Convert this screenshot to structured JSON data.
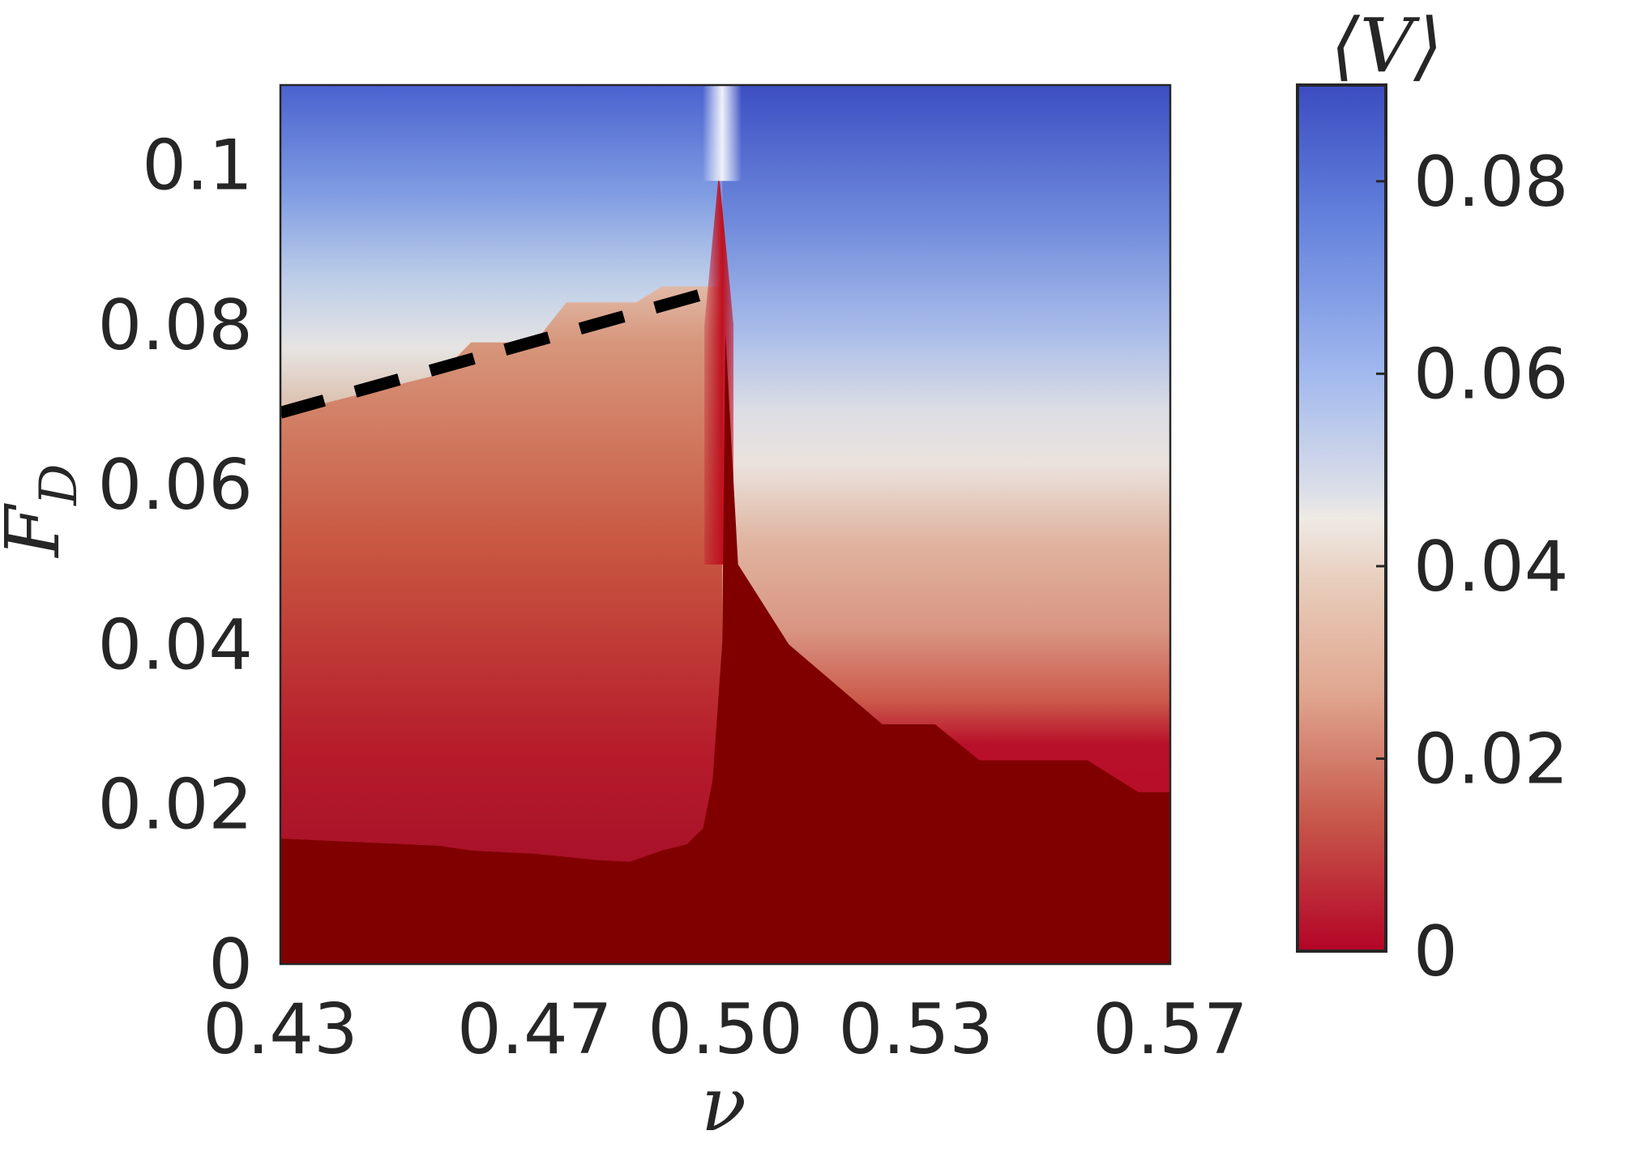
{
  "chart_data": {
    "type": "heatmap",
    "title": "",
    "xlabel": "ν",
    "ylabel": "F_D",
    "xlim": [
      0.43,
      0.57
    ],
    "ylim": [
      0,
      0.11
    ],
    "x_tick_labels": [
      "0.43",
      "0.47",
      "0.50",
      "0.53",
      "0.57"
    ],
    "y_ticks": [
      0,
      0.02,
      0.04,
      0.06,
      0.08,
      0.1
    ],
    "y_tick_labels": [
      "0",
      "0.02",
      "0.04",
      "0.06",
      "0.08",
      "0.1"
    ],
    "colorbar": {
      "label": "⟨V⟩",
      "range": [
        0,
        0.09
      ],
      "ticks": [
        0,
        0.02,
        0.04,
        0.06,
        0.08
      ],
      "tick_labels": [
        "0",
        "0.02",
        "0.04",
        "0.06",
        "0.08"
      ],
      "colormap": "coolwarm (reversed)",
      "colors": {
        "low": "#b40426",
        "mid": "#dddddd",
        "high": "#3b4cc0",
        "zero_phase": "#800000"
      }
    },
    "regions": {
      "pinned_boundary": {
        "nu": [
          0.43,
          0.455,
          0.46,
          0.47,
          0.48,
          0.485,
          0.49,
          0.494,
          0.4965,
          0.498,
          0.4995,
          0.5,
          0.502,
          0.51,
          0.5247,
          0.533,
          0.54,
          0.557,
          0.565,
          0.57
        ],
        "F_D": [
          0.0157,
          0.0148,
          0.0142,
          0.0138,
          0.013,
          0.0128,
          0.0142,
          0.015,
          0.017,
          0.023,
          0.04,
          0.079,
          0.05,
          0.04,
          0.03,
          0.03,
          0.0255,
          0.0255,
          0.0215,
          0.0215
        ]
      },
      "transition_line_dashed": {
        "nu": [
          0.43,
          0.455,
          0.46,
          0.47,
          0.475,
          0.486,
          0.49,
          0.4995
        ],
        "F_D": [
          0.069,
          0.074,
          0.078,
          0.078,
          0.083,
          0.083,
          0.085,
          0.085
        ]
      },
      "ridge": {
        "nu": 0.4995,
        "F_D_top": 0.099
      }
    },
    "grid": false,
    "legend": "none"
  }
}
